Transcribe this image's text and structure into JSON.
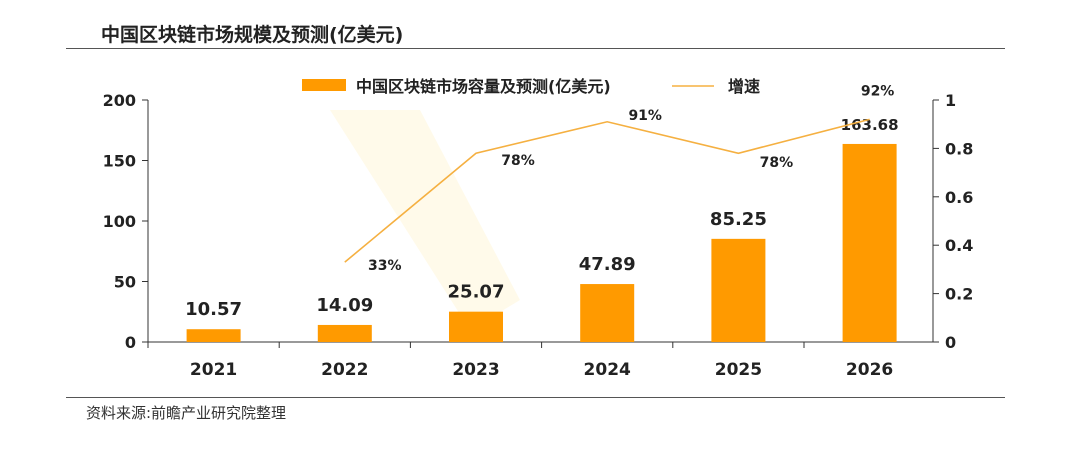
{
  "title": "中国区块链市场规模及预测(亿美元)",
  "source": "资料来源:前瞻产业研究院整理",
  "chart_data": {
    "type": "bar+line",
    "categories": [
      "2021",
      "2022",
      "2023",
      "2024",
      "2025",
      "2026"
    ],
    "series": [
      {
        "name": "中国区块链市场容量及预测(亿美元)",
        "type": "bar",
        "axis": "left",
        "color": "#FF9A00",
        "values": [
          10.57,
          14.09,
          25.07,
          47.89,
          85.25,
          163.68
        ],
        "labels": [
          "10.57",
          "14.09",
          "25.07",
          "47.89",
          "85.25",
          "163.68"
        ]
      },
      {
        "name": "增速",
        "type": "line",
        "axis": "right",
        "color": "#F5B041",
        "values": [
          null,
          0.33,
          0.78,
          0.91,
          0.78,
          0.92
        ],
        "labels": [
          "",
          "33%",
          "78%",
          "91%",
          "78%",
          "92%"
        ]
      }
    ],
    "left_axis": {
      "ylim": [
        0,
        200
      ],
      "ticks": [
        "0",
        "50",
        "100",
        "150",
        "200"
      ]
    },
    "right_axis": {
      "ylim": [
        0,
        1
      ],
      "ticks": [
        "0",
        "0.2",
        "0.4",
        "0.6",
        "0.8",
        "1"
      ]
    },
    "legend": "top",
    "grid": false
  }
}
